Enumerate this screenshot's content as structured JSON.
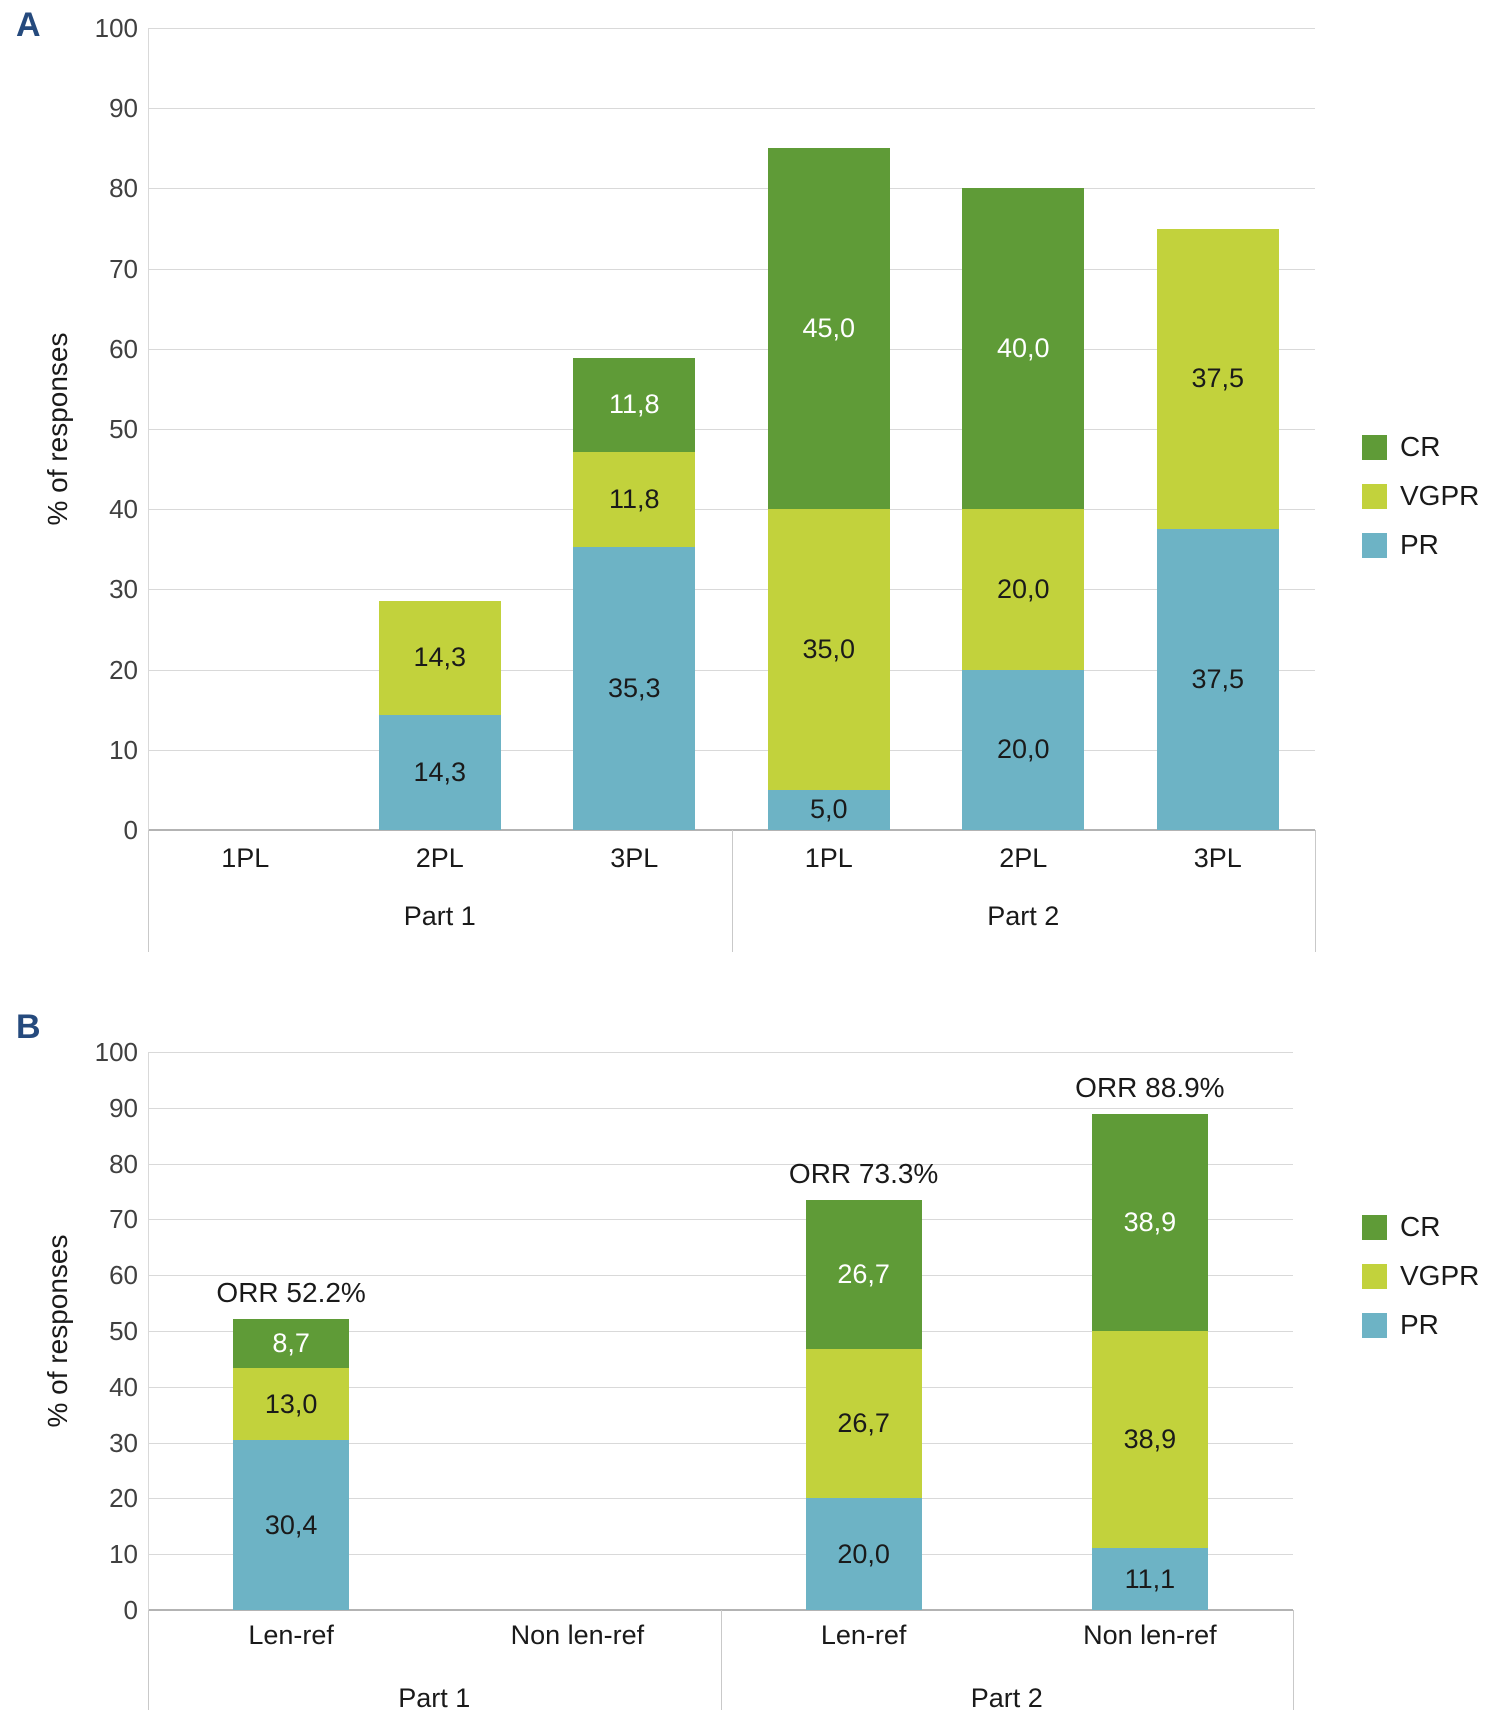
{
  "figure": {
    "panels": [
      {
        "id": "A",
        "label": "A",
        "y_axis_label": "% of responses"
      },
      {
        "id": "B",
        "label": "B",
        "y_axis_label": "% of responses"
      }
    ],
    "legend": {
      "items": [
        {
          "name": "CR",
          "color": "#5F9B37"
        },
        {
          "name": "VGPR",
          "color": "#C2D23C"
        },
        {
          "name": "PR",
          "color": "#6DB3C5"
        }
      ]
    },
    "colors": {
      "panel_label": "#254A7D",
      "gridline": "#D9D9D9",
      "axis_line": "#B3B3B3",
      "divider": "#C9C9C9",
      "text": "#1A1A1A",
      "tick_text": "#404040"
    }
  },
  "chart_data": [
    {
      "panel": "A",
      "type": "bar",
      "stacked": true,
      "title": "",
      "xlabel": "",
      "ylabel": "% of responses",
      "ylim": [
        0,
        100
      ],
      "ytick_step": 10,
      "grid": true,
      "legend_position": "right",
      "label_decimal_separator": ",",
      "groups": [
        {
          "label": "Part 1",
          "categories": [
            "1PL",
            "2PL",
            "3PL"
          ]
        },
        {
          "label": "Part 2",
          "categories": [
            "1PL",
            "2PL",
            "3PL"
          ]
        }
      ],
      "categories": [
        "1PL",
        "2PL",
        "3PL",
        "1PL",
        "2PL",
        "3PL"
      ],
      "series": [
        {
          "name": "PR",
          "color": "#6DB3C5",
          "label_color": "#1A1A1A",
          "values": [
            0,
            14.3,
            35.3,
            5.0,
            20.0,
            37.5
          ]
        },
        {
          "name": "VGPR",
          "color": "#C2D23C",
          "label_color": "#1A1A1A",
          "values": [
            0,
            14.3,
            11.8,
            35.0,
            20.0,
            37.5
          ]
        },
        {
          "name": "CR",
          "color": "#5F9B37",
          "label_color": "#FFFFFF",
          "values": [
            0,
            0,
            11.8,
            45.0,
            40.0,
            0
          ]
        }
      ],
      "annotations": []
    },
    {
      "panel": "B",
      "type": "bar",
      "stacked": true,
      "title": "",
      "xlabel": "",
      "ylabel": "% of responses",
      "ylim": [
        0,
        100
      ],
      "ytick_step": 10,
      "grid": true,
      "legend_position": "right",
      "label_decimal_separator": ",",
      "groups": [
        {
          "label": "Part 1",
          "categories": [
            "Len-ref",
            "Non len-ref"
          ]
        },
        {
          "label": "Part 2",
          "categories": [
            "Len-ref",
            "Non len-ref"
          ]
        }
      ],
      "categories": [
        "Len-ref",
        "Non len-ref",
        "Len-ref",
        "Non len-ref"
      ],
      "series": [
        {
          "name": "PR",
          "color": "#6DB3C5",
          "label_color": "#1A1A1A",
          "values": [
            30.4,
            0,
            20.0,
            11.1
          ]
        },
        {
          "name": "VGPR",
          "color": "#C2D23C",
          "label_color": "#1A1A1A",
          "values": [
            13.0,
            0,
            26.7,
            38.9
          ]
        },
        {
          "name": "CR",
          "color": "#5F9B37",
          "label_color": "#FFFFFF",
          "values": [
            8.7,
            0,
            26.7,
            38.9
          ]
        }
      ],
      "annotations": [
        {
          "category_index": 0,
          "text": "ORR 52.2%"
        },
        {
          "category_index": 2,
          "text": "ORR 73.3%"
        },
        {
          "category_index": 3,
          "text": "ORR 88.9%"
        }
      ]
    }
  ]
}
